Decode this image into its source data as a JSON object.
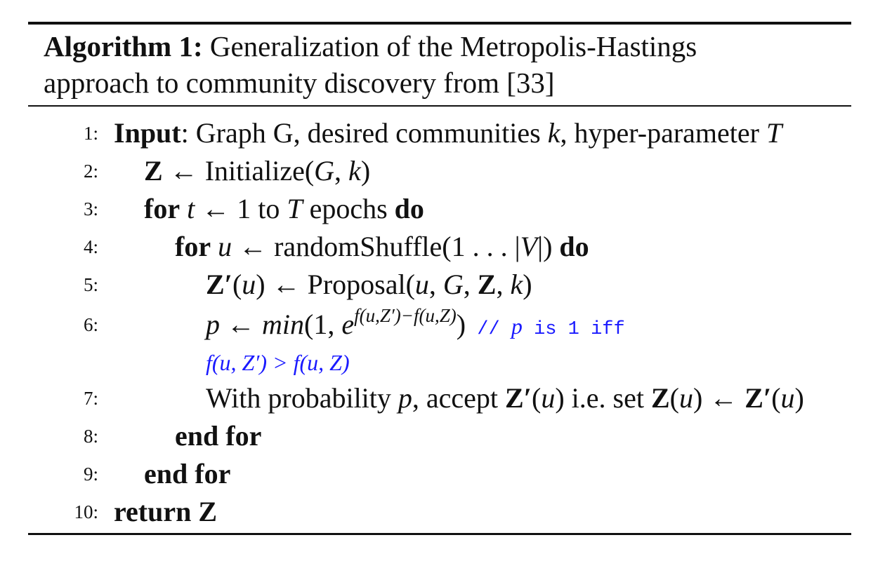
{
  "algorithm": {
    "label": "Algorithm 1:",
    "caption_line1": "Generalization of the Metropolis-Hastings",
    "caption_line2": "approach to community discovery from [33]"
  },
  "lines": [
    {
      "num": "1:",
      "input_kw": "Input",
      "input_text": ": Graph G, desired communities ",
      "k": "k",
      "mid": ", hyper-parameter ",
      "T": "T"
    },
    {
      "num": "2:",
      "Z": "Z",
      "arrow": " ← Initialize(",
      "G": "G",
      "comma": ", ",
      "k": "k",
      "close": ")"
    },
    {
      "num": "3:",
      "for_kw": "for",
      "t": "t",
      "arrow": " ← 1 to ",
      "T": "T",
      "epochs": " epochs ",
      "do_kw": "do"
    },
    {
      "num": "4:",
      "for_kw": "for",
      "u": "u",
      "arrow": " ← randomShuffle(1 . . . |",
      "V": "V",
      "close": "|) ",
      "do_kw": "do"
    },
    {
      "num": "5:",
      "Zp": "Z′",
      "open": "(",
      "u": "u",
      "arrow": ") ← Proposal(",
      "u2": "u",
      "c1": ", ",
      "G": "G",
      "c2": ", ",
      "Z": "Z",
      "c3": ", ",
      "k": "k",
      "close": ")"
    },
    {
      "num": "6:",
      "p": "p",
      "arrow": " ← ",
      "min": "min",
      "open": "(1, ",
      "e": "e",
      "exp": "f(u,Z′)−f(u,Z)",
      "close": ")",
      "comment_prefix": " // ",
      "comment_p": "p",
      "comment_text": " is 1 iff",
      "comment_cont": "f(u, Z′) > f(u, Z)"
    },
    {
      "num": "7:",
      "pre": "With probability ",
      "p": "p",
      "mid": ", accept ",
      "Zp": "Z′",
      "o1": "(",
      "u": "u",
      "c1": ") i.e. set ",
      "Z": "Z",
      "o2": "(",
      "u2": "u",
      "c2": ") ← ",
      "Zp2": "Z′",
      "o3": "(",
      "u3": "u",
      "c3": ")"
    },
    {
      "num": "8:",
      "text": "end for"
    },
    {
      "num": "9:",
      "text": "end for"
    },
    {
      "num": "10:",
      "return_kw": "return",
      "Z": "Z"
    }
  ]
}
